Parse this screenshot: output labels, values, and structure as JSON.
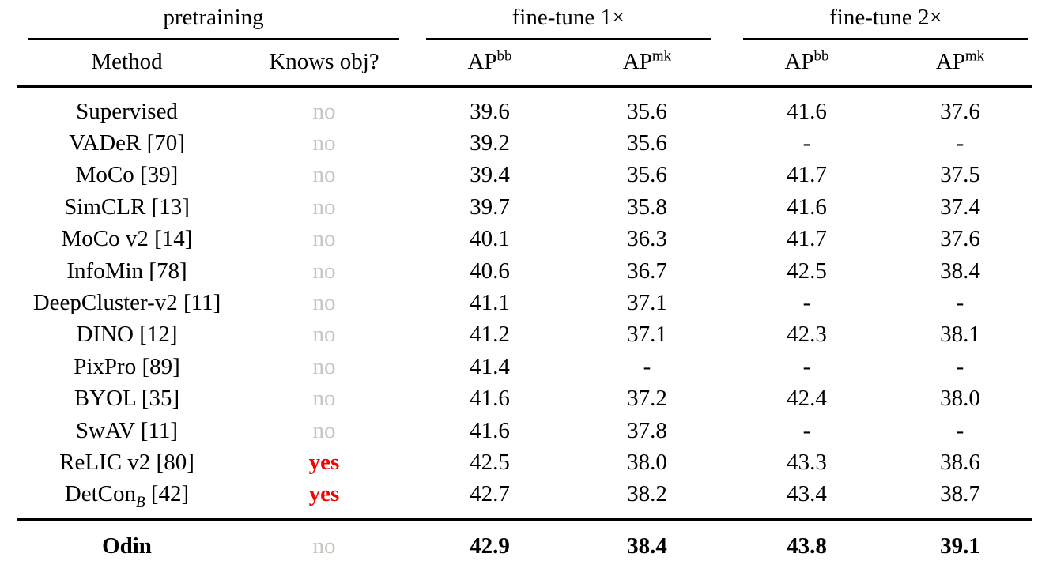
{
  "colors": {
    "no_gray": "#c8c5c0",
    "yes_red": "#f20400",
    "text": "#000000",
    "rule": "#000000"
  },
  "table": {
    "group_headers": [
      {
        "label": "pretraining"
      },
      {
        "label": "fine-tune 1×"
      },
      {
        "label": "fine-tune 2×"
      }
    ],
    "columns": [
      {
        "label": "Method"
      },
      {
        "label": "Knows obj?"
      },
      {
        "base": "AP",
        "sup": "bb"
      },
      {
        "base": "AP",
        "sup": "mk"
      },
      {
        "base": "AP",
        "sup": "bb"
      },
      {
        "base": "AP",
        "sup": "mk"
      }
    ],
    "rows": [
      {
        "method": "Supervised",
        "knows": "no",
        "values": [
          "39.6",
          "35.6",
          "41.6",
          "37.6"
        ]
      },
      {
        "method": "VADeR [70]",
        "knows": "no",
        "values": [
          "39.2",
          "35.6",
          "-",
          "-"
        ]
      },
      {
        "method": "MoCo [39]",
        "knows": "no",
        "values": [
          "39.4",
          "35.6",
          "41.7",
          "37.5"
        ]
      },
      {
        "method": "SimCLR [13]",
        "knows": "no",
        "values": [
          "39.7",
          "35.8",
          "41.6",
          "37.4"
        ]
      },
      {
        "method": "MoCo v2 [14]",
        "knows": "no",
        "values": [
          "40.1",
          "36.3",
          "41.7",
          "37.6"
        ]
      },
      {
        "method": "InfoMin [78]",
        "knows": "no",
        "values": [
          "40.6",
          "36.7",
          "42.5",
          "38.4"
        ]
      },
      {
        "method": "DeepCluster-v2 [11]",
        "knows": "no",
        "values": [
          "41.1",
          "37.1",
          "-",
          "-"
        ]
      },
      {
        "method": "DINO [12]",
        "knows": "no",
        "values": [
          "41.2",
          "37.1",
          "42.3",
          "38.1"
        ]
      },
      {
        "method": "PixPro [89]",
        "knows": "no",
        "values": [
          "41.4",
          "-",
          "-",
          "-"
        ]
      },
      {
        "method": "BYOL [35]",
        "knows": "no",
        "values": [
          "41.6",
          "37.2",
          "42.4",
          "38.0"
        ]
      },
      {
        "method": "SwAV [11]",
        "knows": "no",
        "values": [
          "41.6",
          "37.8",
          "-",
          "-"
        ]
      },
      {
        "method": "ReLIC v2 [80]",
        "knows": "yes",
        "values": [
          "42.5",
          "38.0",
          "43.3",
          "38.6"
        ]
      },
      {
        "method": "DetCon",
        "method_sub": "B",
        "method_ref": "[42]",
        "knows": "yes",
        "values": [
          "42.7",
          "38.2",
          "43.4",
          "38.7"
        ]
      }
    ],
    "footer": {
      "method": "Odin",
      "knows": "no",
      "values": [
        "42.9",
        "38.4",
        "43.8",
        "39.1"
      ]
    }
  }
}
